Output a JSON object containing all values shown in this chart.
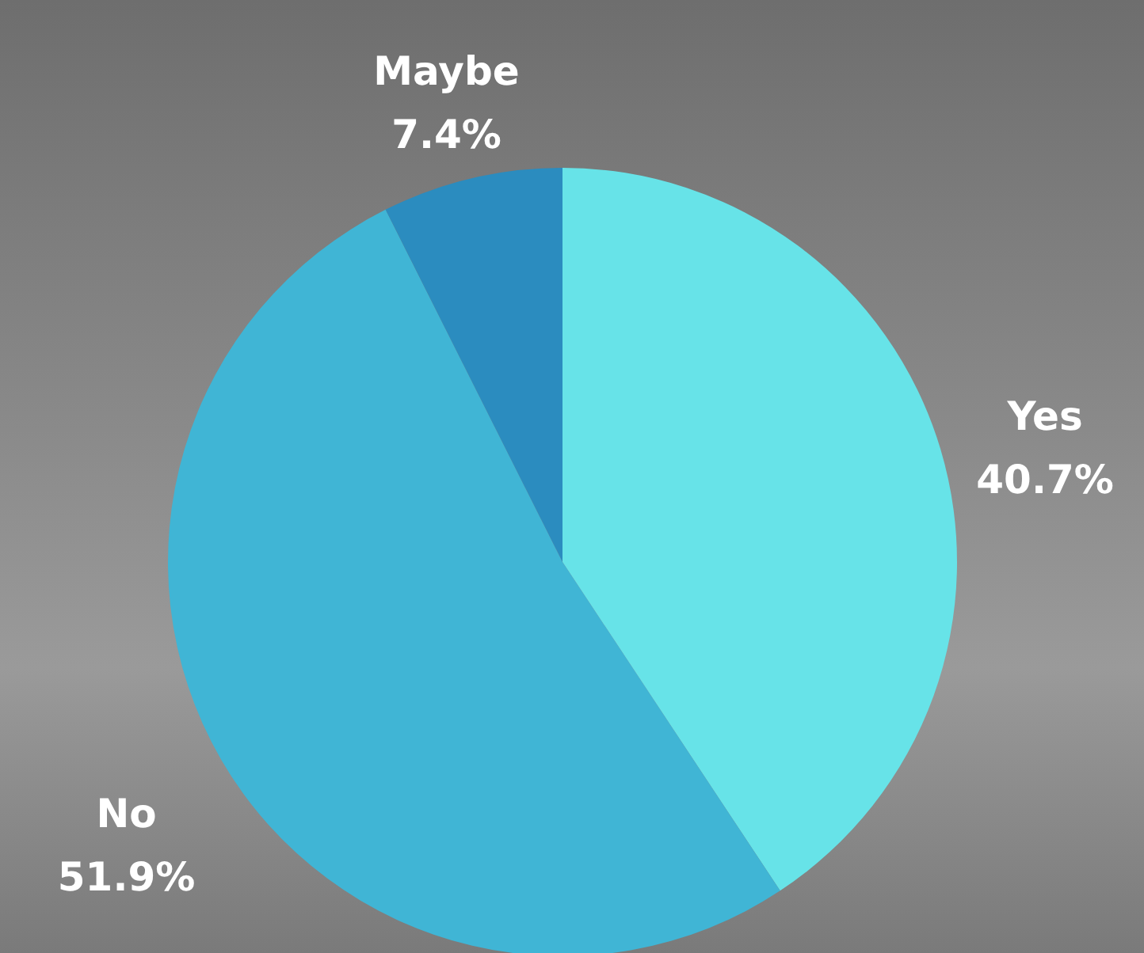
{
  "chart_data": {
    "type": "pie",
    "categories": [
      "Yes",
      "No",
      "Maybe"
    ],
    "values": [
      40.7,
      51.9,
      7.4
    ],
    "colors": [
      "#67e3e8",
      "#40b5d5",
      "#2b8cbf"
    ],
    "value_labels": [
      "40.7%",
      "51.9%",
      "7.4%"
    ]
  }
}
